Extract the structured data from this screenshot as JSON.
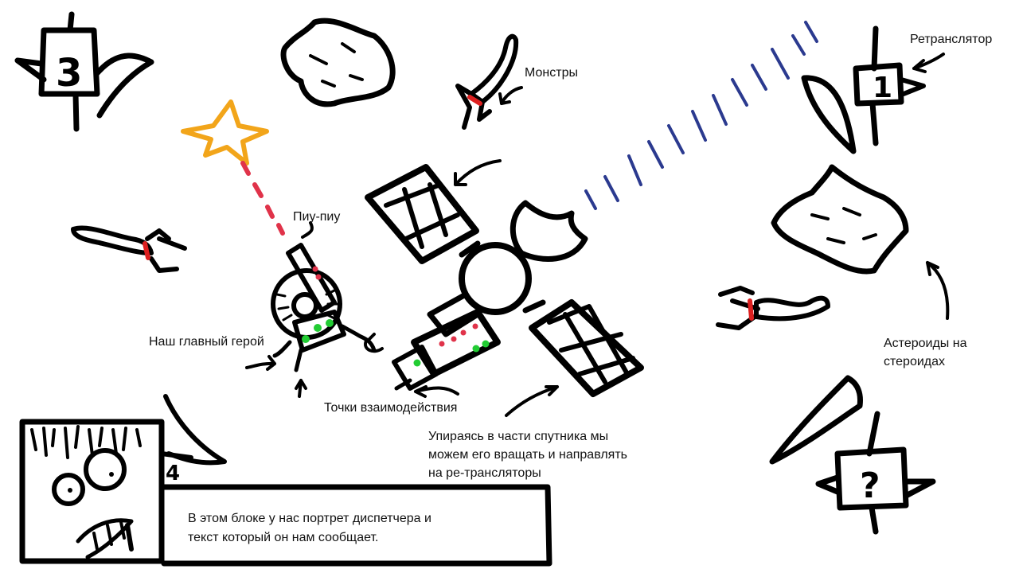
{
  "labels": {
    "retranslator": "Ретранслятор",
    "monsters": "Монстры",
    "piu": "Пиу-пиу",
    "hero": "Наш главный герой",
    "interaction_points": "Точки взаимодействия",
    "rotate_line1": "Упираясь в части спутника мы",
    "rotate_line2": "можем его вращать и направлять",
    "rotate_line3": "на ре-трансляторы",
    "asteroids_line1": "Астероиды на",
    "asteroids_line2": "стероидах"
  },
  "dialog": {
    "line1": "В этом блоке у нас портрет диспетчера и",
    "line2": "текст который он нам сообщает."
  },
  "relays": [
    {
      "number": "3"
    },
    {
      "number": "1"
    },
    {
      "number": "?"
    },
    {
      "number": "4"
    }
  ],
  "colors": {
    "ink": "#000000",
    "signal": "#2b3a8f",
    "star": "#f2a51a",
    "laser": "#e0334a",
    "interaction_point": "#22cc33",
    "monster_mark": "#dd1f1f"
  },
  "icons": [
    "relay-station",
    "asteroid",
    "space-monster",
    "satellite",
    "hero-ship",
    "explosion-star",
    "dispatcher-portrait"
  ]
}
